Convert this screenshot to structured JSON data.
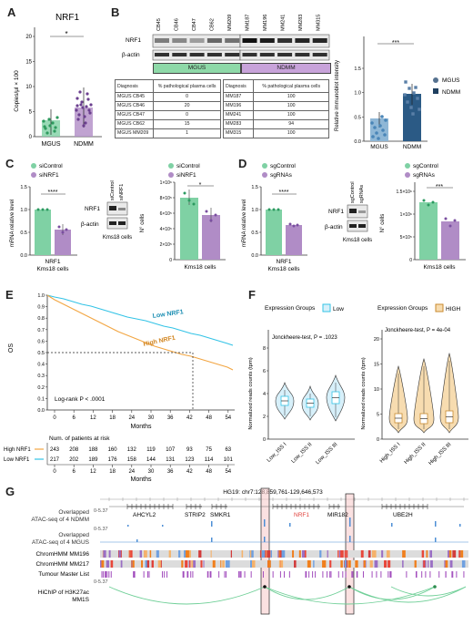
{
  "panels": {
    "A": {
      "label": "A",
      "title": "NRF1",
      "ylabel": "Copies/μl × 100",
      "yticks": [
        "0",
        "5",
        "10",
        "15",
        "20"
      ],
      "sig": "*",
      "groups": [
        "MGUS",
        "NDMM"
      ]
    },
    "B": {
      "label": "B",
      "mgus_lanes": [
        "CB45",
        "CB46",
        "CB47",
        "CB62",
        "MM209"
      ],
      "ndmm_lanes": [
        "MM187",
        "MM196",
        "MM241",
        "MM283",
        "MM315"
      ],
      "blot_rows": [
        "NRF1",
        "β-actin"
      ],
      "group_boxes": [
        "MGUS",
        "NDMM"
      ],
      "table_mgus": {
        "header": [
          "Diagnosis",
          "% pathological plasma cells"
        ],
        "rows": [
          [
            "MGUS CB45",
            "0"
          ],
          [
            "MGUS CB46",
            "20"
          ],
          [
            "MGUS CB47",
            "0"
          ],
          [
            "MGUS CB62",
            "15"
          ],
          [
            "MGUS MM209",
            "1"
          ]
        ]
      },
      "table_ndmm": {
        "header": [
          "Diagnosis",
          "% pathological plasma cells"
        ],
        "rows": [
          [
            "MM187",
            "100"
          ],
          [
            "MM196",
            "100"
          ],
          [
            "MM241",
            "100"
          ],
          [
            "MM283",
            "94"
          ],
          [
            "MM315",
            "100"
          ]
        ]
      },
      "bar_ylabel": "Relative immunoblot intensity",
      "yticks": [
        "0.0",
        "0.5",
        "1.0",
        "1.5"
      ],
      "sig": "***",
      "groups": [
        "MGUS",
        "NDMM"
      ],
      "legend": [
        "MGUS",
        "NDMM"
      ]
    },
    "C": {
      "label": "C",
      "legend": [
        "siControl",
        "siNRF1"
      ],
      "ylabel1": "mRNA relative level",
      "yticks1": [
        "0.0",
        "0.5",
        "1.0",
        "1.5"
      ],
      "sig1": "****",
      "xlabel1": [
        "NRF1",
        "Kms18 cells"
      ],
      "lanes": [
        "siControl",
        "siNRF1"
      ],
      "blot_rows": [
        "NRF1",
        "β-actin"
      ],
      "blot_caption": "Kms18 cells",
      "ylabel2": "N° cells",
      "yticks2": [
        "0",
        "2×10⁵",
        "4×10⁵",
        "6×10⁵",
        "8×10⁵",
        "1×10⁶"
      ],
      "sig2": "*",
      "xlabel2": "Kms18 cells"
    },
    "D": {
      "label": "D",
      "legend": [
        "sgControl",
        "sgRNAs"
      ],
      "ylabel1": "mRNA relative level",
      "yticks1": [
        "0.0",
        "0.5",
        "1.0",
        "1.5"
      ],
      "sig1": "****",
      "xlabel1": [
        "NRF1",
        "Kms18 cells"
      ],
      "lanes": [
        "sgControl",
        "sgRNAs"
      ],
      "blot_rows": [
        "NRF1",
        "β-actin"
      ],
      "blot_caption": "Kms18 cells",
      "ylabel2": "N° cells",
      "yticks2": [
        "0",
        "5×10⁵",
        "1×10⁶",
        "1.5×10⁶"
      ],
      "sig2": "***",
      "xlabel2": "Kms18 cells"
    },
    "E": {
      "label": "E",
      "ylabel": "OS",
      "yticks": [
        "0.0",
        "0.1",
        "0.2",
        "0.3",
        "0.4",
        "0.5",
        "0.6",
        "0.7",
        "0.8",
        "0.9",
        "1.0"
      ],
      "xticks": [
        "0",
        "6",
        "12",
        "18",
        "24",
        "30",
        "36",
        "42",
        "48",
        "54"
      ],
      "xlabel": "Months",
      "line_labels": [
        "Low NRF1",
        "High NRF1"
      ],
      "logrank": "Log-rank P < .0001",
      "risk_title": "Num. of patients at risk",
      "risk_rows": [
        {
          "name": "High NRF1",
          "values": [
            "243",
            "208",
            "188",
            "160",
            "132",
            "119",
            "107",
            "93",
            "75",
            "63"
          ]
        },
        {
          "name": "Low NRF1",
          "values": [
            "217",
            "202",
            "189",
            "176",
            "158",
            "144",
            "131",
            "123",
            "114",
            "101"
          ]
        }
      ]
    },
    "F": {
      "label": "F",
      "legend_title": "Expression Groups",
      "left_legend": "Low",
      "right_legend": "HIGH",
      "ylabel": "Normalized reads counts (tpm)",
      "left_test": "Jonckheere-test, P = .1023",
      "right_test": "Jonckheere-test, P = 4e-04",
      "left_yticks": [
        "0",
        "2",
        "4",
        "6",
        "8"
      ],
      "right_yticks": [
        "0",
        "5",
        "10",
        "15",
        "20"
      ],
      "left_cats": [
        "Low_ISS I",
        "Low_ISS II",
        "Low_ISS III"
      ],
      "right_cats": [
        "High_ISS I",
        "High_ISS II",
        "High_ISS III"
      ]
    },
    "G": {
      "label": "G",
      "coords": "HG19: chr7:128,859,761-129,646,573",
      "tracks": [
        "Overlapped ATAC-seq of 4 NDMM",
        "Overlapped ATAC-seq of 4 MGUS",
        "ChromHMM MM196",
        "ChromHMM MM217",
        "Tumour Master List",
        "HiChIP of H3K27ac MM1S"
      ],
      "scale": "0-5.37",
      "genes": [
        "AHCYL2",
        "STRIP2",
        "SMKR1",
        "NRF1",
        "MIR182",
        "UBE2H"
      ]
    }
  },
  "colors": {
    "green": "#7fd1a4",
    "purple": "#b08cc6",
    "gold": "#f2a541",
    "cyan": "#33c3e6",
    "mgus_box": "#8ed9a8",
    "ndmm_box": "#c8a3da",
    "dark_blue": "#1f3f5f"
  }
}
